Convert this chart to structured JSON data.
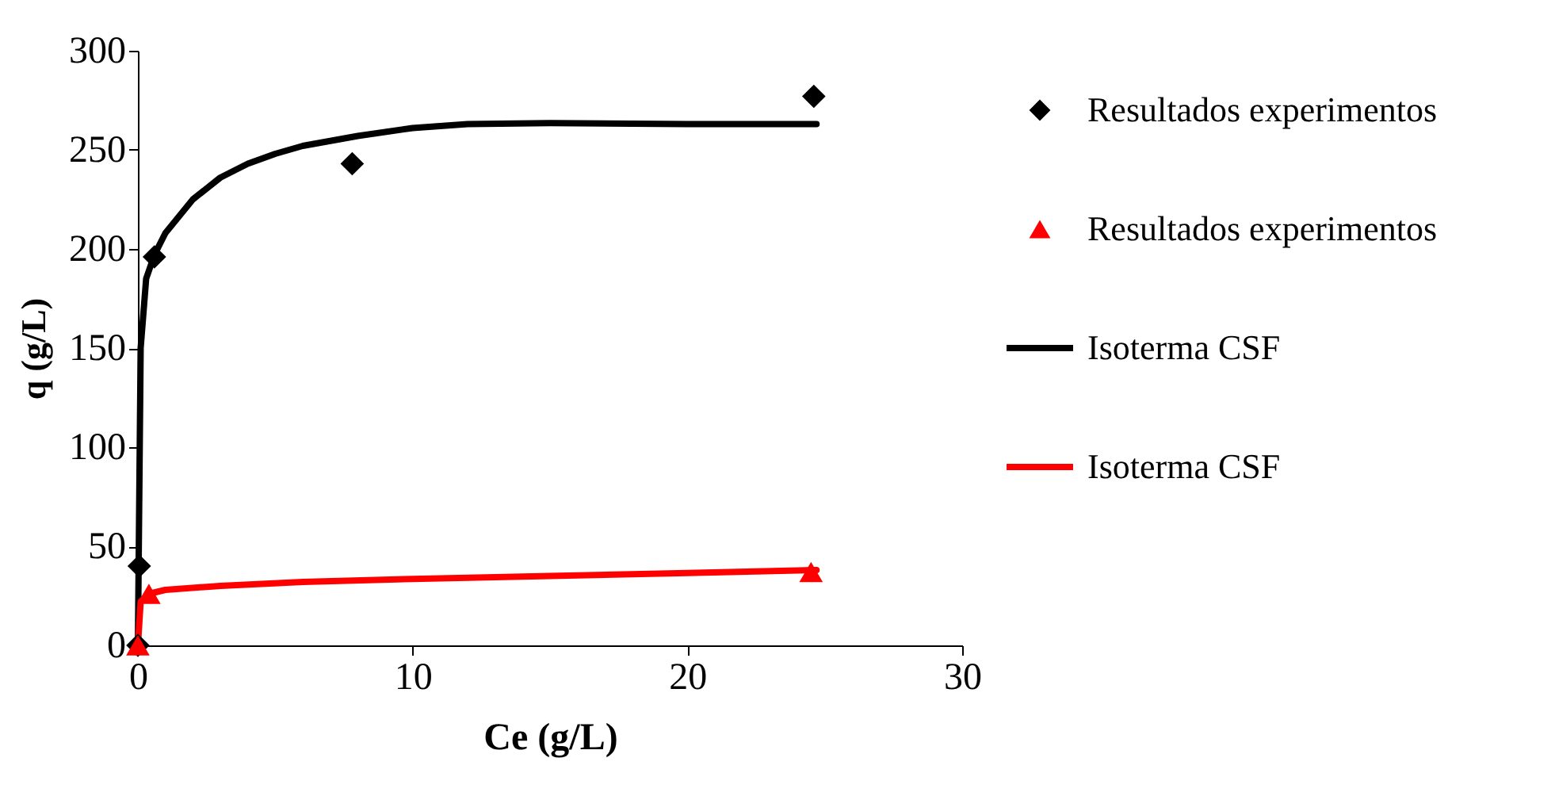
{
  "chart_data": {
    "type": "scatter",
    "xlabel": "Ce (g/L)",
    "ylabel": "q (g/L)",
    "xlim": [
      0,
      30
    ],
    "ylim": [
      0,
      300
    ],
    "xticks": [
      0,
      10,
      20,
      30
    ],
    "yticks": [
      0,
      50,
      100,
      150,
      200,
      250,
      300
    ],
    "grid": false,
    "legend": "right",
    "series": [
      {
        "name": "Resultados experimentos",
        "marker": "diamond",
        "color": "#000000",
        "x": [
          0,
          0.05,
          0.6,
          7.8,
          24.6
        ],
        "values": [
          0,
          40,
          196,
          243,
          277
        ]
      },
      {
        "name": "Resultados experimentos",
        "marker": "triangle",
        "color": "#ff0000",
        "x": [
          0,
          0.4,
          24.5
        ],
        "values": [
          0,
          26,
          37
        ]
      },
      {
        "name": "Isoterma CSF",
        "type": "line",
        "marker": "none",
        "line_style": "solid",
        "color": "#000000",
        "x": [
          0,
          0.1,
          0.3,
          0.6,
          1,
          2,
          3,
          4,
          5,
          6,
          8,
          10,
          12,
          15,
          20,
          24.7
        ],
        "values": [
          0,
          150,
          185,
          197,
          208,
          225,
          236,
          243,
          248,
          252,
          257,
          261,
          263,
          263.5,
          263,
          263
        ]
      },
      {
        "name": "Isoterma CSF",
        "type": "line",
        "marker": "none",
        "line_style": "solid",
        "color": "#ff0000",
        "x": [
          0,
          0.1,
          0.4,
          1,
          3,
          6,
          10,
          15,
          20,
          24.7
        ],
        "values": [
          0,
          22,
          26,
          28,
          30,
          32,
          33.5,
          35,
          36.5,
          38
        ]
      }
    ]
  }
}
